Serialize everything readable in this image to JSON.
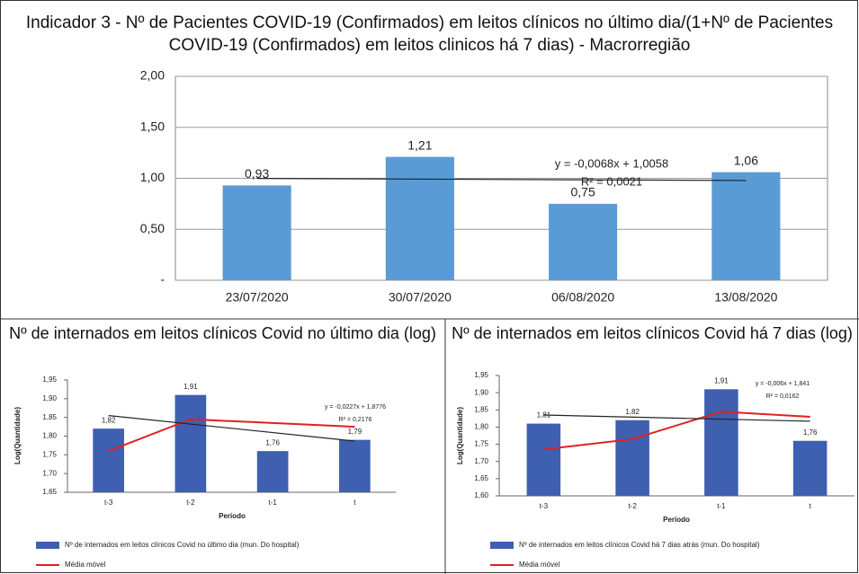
{
  "chart_data": [
    {
      "type": "bar",
      "title": "Indicador 3 - Nº de Pacientes COVID-19 (Confirmados) em leitos clínicos no último dia/(1+Nº de Pacientes COVID-19 (Confirmados) em leitos clinicos há 7 dias) - Macrorregião",
      "categories": [
        "23/07/2020",
        "30/07/2020",
        "06/08/2020",
        "13/08/2020"
      ],
      "values": [
        0.93,
        1.21,
        0.75,
        1.06
      ],
      "value_labels": [
        "0,93",
        "1,21",
        "0,75",
        "1,06"
      ],
      "color": "#5b9bd5",
      "ylim": [
        0,
        2
      ],
      "yticks": [
        {
          "value": 0,
          "label": "-"
        },
        {
          "value": 0.5,
          "label": "0,50"
        },
        {
          "value": 1,
          "label": "1,00"
        },
        {
          "value": 1.5,
          "label": "1,50"
        },
        {
          "value": 2,
          "label": "2,00"
        }
      ],
      "grid": true,
      "trendline": {
        "slope": -0.0068,
        "intercept": 1.0058,
        "equation": "y = -0,0068x + 1,0058",
        "r_squared": "R² = 0,0021"
      }
    },
    {
      "type": "bar",
      "title": "Nº de internados em leitos clínicos Covid no último dia (log)",
      "y_label": "Log(Quantidade)",
      "x_label": "Período",
      "categories": [
        "t-3",
        "t-2",
        "t-1",
        "t"
      ],
      "series": [
        {
          "name": "Nº de internados em leitos clínicos Covid no último dia (mun. Do hospital)",
          "color": "#3f5fb0",
          "values": [
            1.82,
            1.91,
            1.76,
            1.79
          ],
          "value_labels": [
            "1,82",
            "1,91",
            "1,76",
            "1,79"
          ]
        },
        {
          "name": "Média móvel",
          "type": "line",
          "color": "#e02020",
          "values": [
            1.76,
            1.845,
            1.835,
            1.825
          ]
        }
      ],
      "ylim": [
        1.65,
        1.95
      ],
      "yticks": [
        {
          "value": 1.65,
          "label": "1,65"
        },
        {
          "value": 1.7,
          "label": "1,70"
        },
        {
          "value": 1.75,
          "label": "1,75"
        },
        {
          "value": 1.8,
          "label": "1,80"
        },
        {
          "value": 1.85,
          "label": "1,85"
        },
        {
          "value": 1.9,
          "label": "1,90"
        },
        {
          "value": 1.95,
          "label": "1,95"
        }
      ],
      "grid": false,
      "trendline": {
        "slope": -0.0227,
        "intercept": 1.8776,
        "equation": "y = -0,0227x + 1,8776",
        "r_squared": "R² = 0,2176"
      }
    },
    {
      "type": "bar",
      "title": "Nº de internados em leitos clínicos Covid há 7 dias (log)",
      "y_label": "Log(Quantidade)",
      "x_label": "Período",
      "categories": [
        "t-3",
        "t-2",
        "t-1",
        "t"
      ],
      "series": [
        {
          "name": "Nº de internados em leitos clínicos Covid há 7 dias atrás (mun. Do hospital)",
          "color": "#3f5fb0",
          "values": [
            1.81,
            1.82,
            1.91,
            1.76
          ],
          "value_labels": [
            "1,81",
            "1,82",
            "1,91",
            "1,76"
          ]
        },
        {
          "name": "Média móvel",
          "type": "line",
          "color": "#e02020",
          "values": [
            1.735,
            1.765,
            1.845,
            1.83
          ]
        }
      ],
      "ylim": [
        1.6,
        1.95
      ],
      "yticks": [
        {
          "value": 1.6,
          "label": "1,60"
        },
        {
          "value": 1.65,
          "label": "1,65"
        },
        {
          "value": 1.7,
          "label": "1,70"
        },
        {
          "value": 1.75,
          "label": "1,75"
        },
        {
          "value": 1.8,
          "label": "1,80"
        },
        {
          "value": 1.85,
          "label": "1,85"
        },
        {
          "value": 1.9,
          "label": "1,90"
        },
        {
          "value": 1.95,
          "label": "1,95"
        }
      ],
      "grid": false,
      "trendline": {
        "slope": -0.006,
        "intercept": 1.841,
        "equation": "y = -0,006x + 1,841",
        "r_squared": "R² = 0,0162"
      }
    }
  ]
}
